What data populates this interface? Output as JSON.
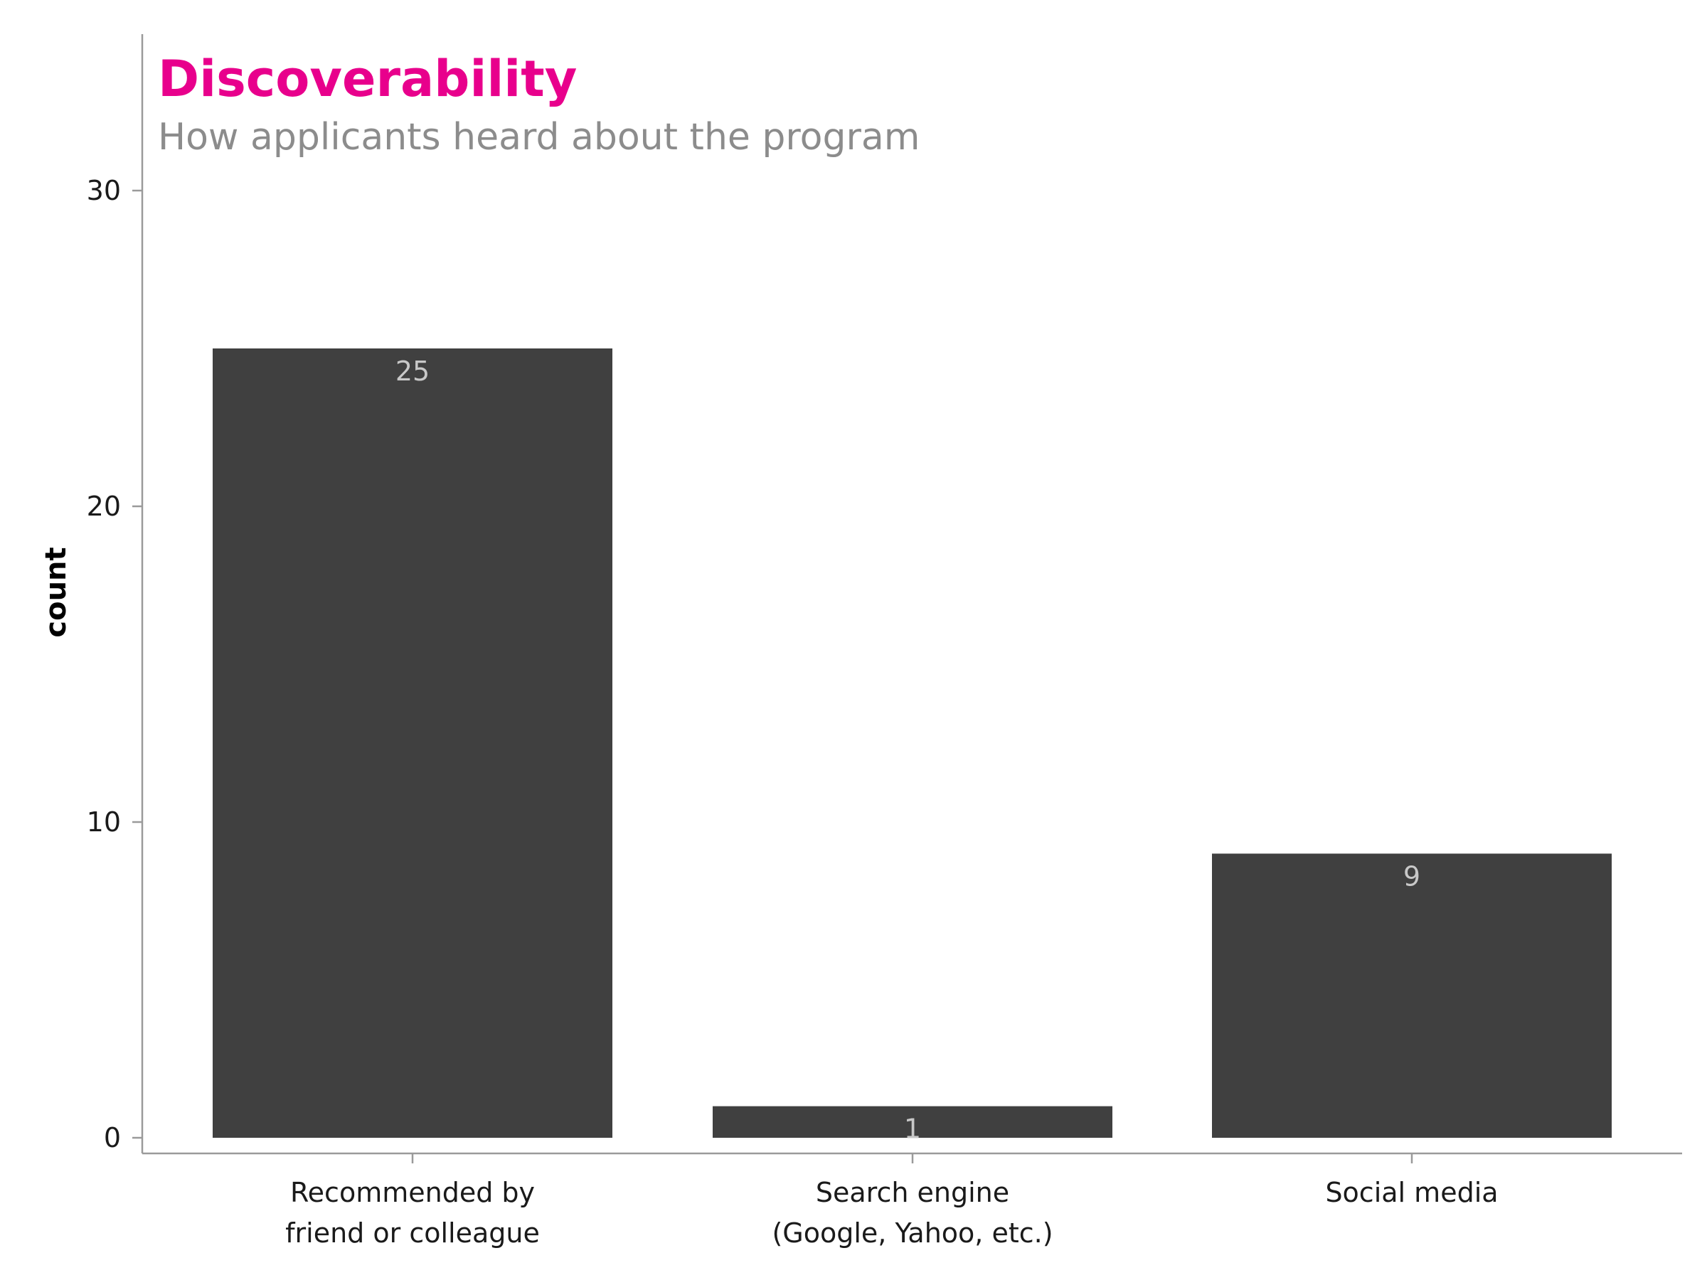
{
  "chart_data": {
    "type": "bar",
    "title": "Discoverability",
    "subtitle": "How applicants heard about the program",
    "xlabel": "",
    "ylabel": "count",
    "categories": [
      [
        "Recommended by",
        "friend or colleague"
      ],
      [
        "Search engine",
        "(Google, Yahoo, etc.)"
      ],
      [
        "Social media"
      ]
    ],
    "values": [
      25,
      1,
      9
    ],
    "data_labels": [
      "25",
      "1",
      "9"
    ],
    "ylim": [
      0,
      33
    ],
    "yticks": [
      0,
      10,
      20,
      30
    ],
    "grid": false,
    "colors": {
      "bar": "#404040",
      "title": "#e8008c",
      "subtitle": "#8c8c8c",
      "axis": "#9a9a9a",
      "data_label": "#c8c8c8"
    }
  }
}
